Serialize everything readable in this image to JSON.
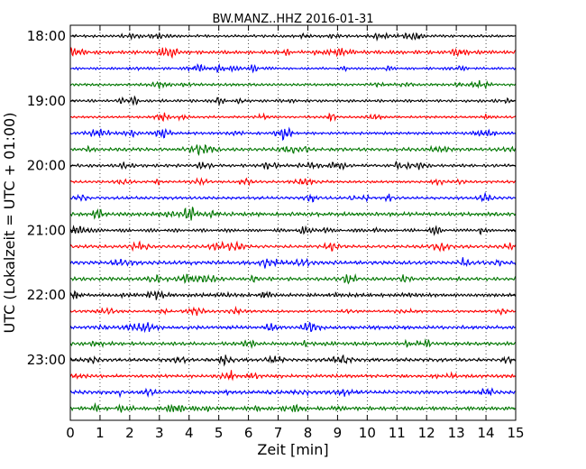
{
  "chart_data": {
    "type": "line",
    "title": "BW.MANZ..HHZ 2016-01-31",
    "xlabel": "Zeit  [min]",
    "ylabel": "UTC (Lokalzeit = UTC + 01:00)",
    "xlim": [
      0,
      15
    ],
    "xticks": [
      "0",
      "1",
      "2",
      "3",
      "4",
      "5",
      "6",
      "7",
      "8",
      "9",
      "10",
      "11",
      "12",
      "13",
      "14",
      "15"
    ],
    "yticks": [
      {
        "label": "18:00",
        "trace_index": 0
      },
      {
        "label": "19:00",
        "trace_index": 4
      },
      {
        "label": "20:00",
        "trace_index": 8
      },
      {
        "label": "21:00",
        "trace_index": 12
      },
      {
        "label": "22:00",
        "trace_index": 16
      },
      {
        "label": "23:00",
        "trace_index": 20
      }
    ],
    "trace_count": 24,
    "minutes_per_trace": 15,
    "trace_colors": [
      "#000000",
      "#ff0000",
      "#0000ff",
      "#007700"
    ],
    "grid": "vertical dotted"
  }
}
